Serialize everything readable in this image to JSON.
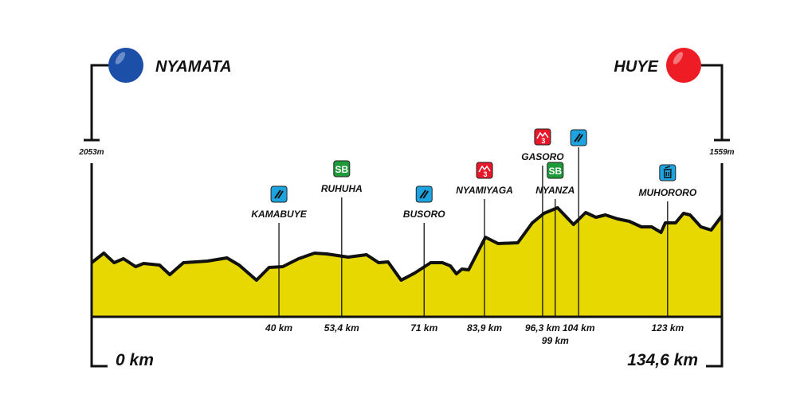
{
  "chart_data": {
    "type": "area",
    "title": "",
    "start": {
      "town": "NYAMATA",
      "elevation": "2053m",
      "distance": "0 km",
      "color": "#1c4fa8"
    },
    "finish": {
      "town": "HUYE",
      "elevation": "1559m",
      "distance": "134,6 km",
      "color": "#ee1c25"
    },
    "xlim": [
      0,
      134.6
    ],
    "fill_color": "#e6d800",
    "profile_note_units": "relative height",
    "profile": [
      [
        0,
        68
      ],
      [
        2.6,
        80
      ],
      [
        4.8,
        68
      ],
      [
        6.8,
        73
      ],
      [
        9.4,
        63
      ],
      [
        11.1,
        67
      ],
      [
        14.5,
        65
      ],
      [
        16.7,
        53
      ],
      [
        19.6,
        68
      ],
      [
        24.7,
        70
      ],
      [
        28.9,
        74
      ],
      [
        31.5,
        65
      ],
      [
        35.2,
        46
      ],
      [
        37.9,
        62
      ],
      [
        40.8,
        63
      ],
      [
        44.2,
        73
      ],
      [
        47.6,
        80
      ],
      [
        50.2,
        79
      ],
      [
        54.8,
        75
      ],
      [
        58.7,
        78
      ],
      [
        61.3,
        68
      ],
      [
        63.3,
        69
      ],
      [
        66.1,
        46
      ],
      [
        69,
        55
      ],
      [
        72.4,
        68
      ],
      [
        74.9,
        68
      ],
      [
        76.6,
        64
      ],
      [
        77.9,
        54
      ],
      [
        79.1,
        60
      ],
      [
        80.5,
        59
      ],
      [
        84.1,
        100
      ],
      [
        86.8,
        92
      ],
      [
        91,
        93
      ],
      [
        94.1,
        118
      ],
      [
        96.6,
        130
      ],
      [
        99.5,
        137
      ],
      [
        102.9,
        116
      ],
      [
        105.5,
        131
      ],
      [
        107.7,
        125
      ],
      [
        109.7,
        128
      ],
      [
        112.3,
        123
      ],
      [
        114.8,
        120
      ],
      [
        117.4,
        113
      ],
      [
        119.6,
        113
      ],
      [
        121.6,
        106
      ],
      [
        122.5,
        118
      ],
      [
        124.7,
        118
      ],
      [
        126.4,
        130
      ],
      [
        127.8,
        128
      ],
      [
        130.1,
        113
      ],
      [
        132.3,
        109
      ],
      [
        134.6,
        127
      ]
    ],
    "points": [
      {
        "km": 40,
        "label": "40 km",
        "name": "KAMABUYE",
        "icon": "sprint-icon"
      },
      {
        "km": 53.4,
        "label": "53,4 km",
        "name": "RUHUHA",
        "icon": "sb-icon"
      },
      {
        "km": 71,
        "label": "71 km",
        "name": "BUSORO",
        "icon": "sprint-icon"
      },
      {
        "km": 83.9,
        "label": "83,9 km",
        "name": "NYAMIYAGA",
        "icon": "climb-cat3-icon"
      },
      {
        "km": 96.3,
        "label": "96,3 km",
        "name": "GASORO",
        "icon": "climb-cat3-icon"
      },
      {
        "km": 99,
        "label": "99 km",
        "name": "NYANZA",
        "icon": "sb-icon"
      },
      {
        "km": 104,
        "label": "104 km",
        "name": "",
        "icon": "sprint-icon"
      },
      {
        "km": 123,
        "label": "123 km",
        "name": "MUHORORO",
        "icon": "feed-zone-icon"
      }
    ],
    "icon_text": {
      "sb": "SB",
      "cat": "3"
    },
    "colors": {
      "sprint": "#1da4e0",
      "sb": "#1f9a3a",
      "climb": "#e8172a"
    }
  }
}
